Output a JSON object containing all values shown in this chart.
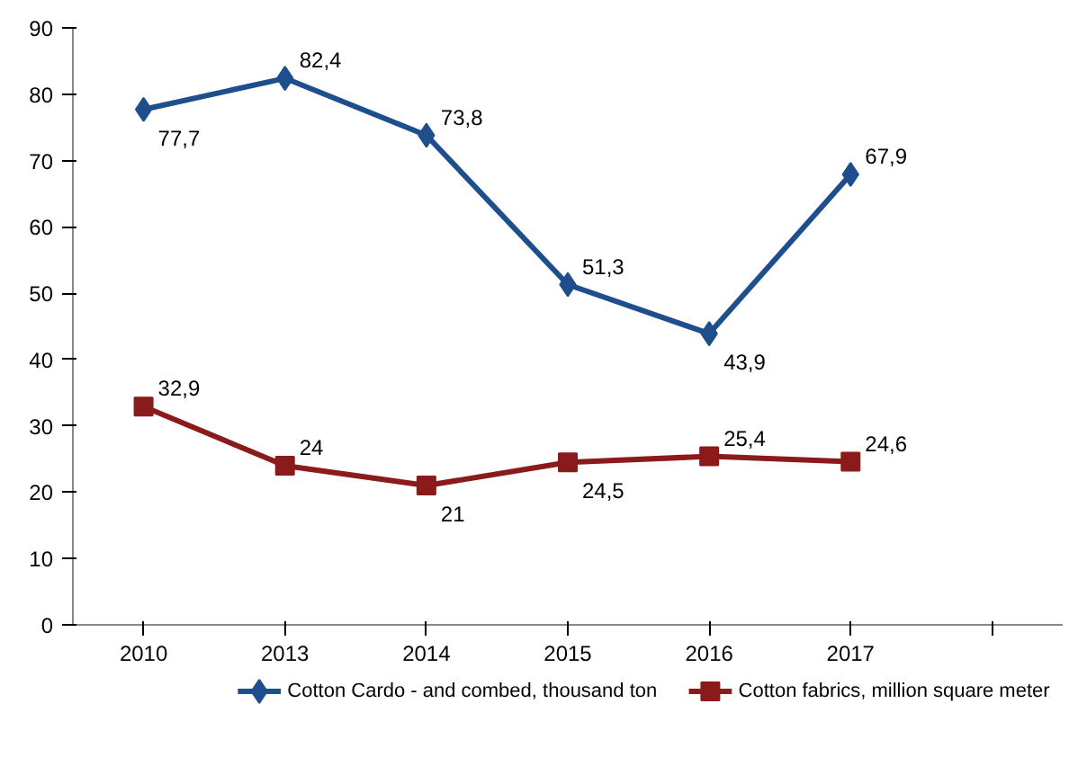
{
  "chart_data": {
    "type": "line",
    "categories": [
      "2010",
      "2013",
      "2014",
      "2015",
      "2016",
      "2017",
      null
    ],
    "series": [
      {
        "name": "Cotton Cardo - and combed, thousand ton",
        "color": "#1f4e8c",
        "marker": "diamond",
        "values": [
          77.7,
          82.4,
          73.8,
          51.3,
          43.9,
          67.9,
          null
        ],
        "value_labels": [
          "77,7",
          "82,4",
          "73,8",
          "51,3",
          "43,9",
          "67,9",
          null
        ]
      },
      {
        "name": "Cotton fabrics, million square meter",
        "color": "#8b1a1a",
        "marker": "square",
        "values": [
          32.9,
          24,
          21,
          24.5,
          25.4,
          24.6,
          null
        ],
        "value_labels": [
          "32,9",
          "24",
          "21",
          "24,5",
          "25,4",
          "24,6",
          null
        ]
      }
    ],
    "ylim": [
      0,
      90
    ],
    "yticks": [
      0,
      10,
      20,
      30,
      40,
      50,
      60,
      70,
      80,
      90
    ],
    "grid": false,
    "legend": "bottom",
    "line_style": "solid"
  }
}
